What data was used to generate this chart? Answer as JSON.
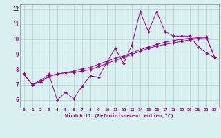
{
  "x": [
    0,
    1,
    2,
    3,
    4,
    5,
    6,
    7,
    8,
    9,
    10,
    11,
    12,
    13,
    14,
    15,
    16,
    17,
    18,
    19,
    20,
    21,
    22,
    23
  ],
  "line1": [
    7.7,
    7.0,
    7.3,
    7.7,
    6.0,
    6.5,
    6.1,
    6.9,
    7.6,
    7.5,
    8.5,
    9.4,
    8.4,
    9.6,
    11.8,
    10.5,
    11.8,
    10.5,
    10.2,
    10.2,
    10.2,
    9.5,
    9.1,
    8.8
  ],
  "line2": [
    7.7,
    7.0,
    7.2,
    7.6,
    7.7,
    7.8,
    7.8,
    7.9,
    8.0,
    8.2,
    8.4,
    8.6,
    8.8,
    9.0,
    9.2,
    9.4,
    9.55,
    9.65,
    9.75,
    9.85,
    9.95,
    10.05,
    10.1,
    8.8
  ],
  "line3": [
    7.7,
    7.0,
    7.2,
    7.55,
    7.7,
    7.8,
    7.9,
    8.05,
    8.15,
    8.35,
    8.55,
    8.75,
    8.9,
    9.1,
    9.3,
    9.5,
    9.65,
    9.8,
    9.9,
    10.0,
    10.05,
    10.1,
    10.15,
    8.8
  ],
  "line_color": "#990099",
  "bg_color": "#d8f0f0",
  "grid_color": "#b8d8d8",
  "xlabel": "Windchill (Refroidissement éolien,°C)",
  "ylabel_ticks": [
    6,
    7,
    8,
    9,
    10,
    11,
    12
  ],
  "xlim": [
    -0.5,
    23.5
  ],
  "ylim": [
    5.5,
    12.3
  ]
}
